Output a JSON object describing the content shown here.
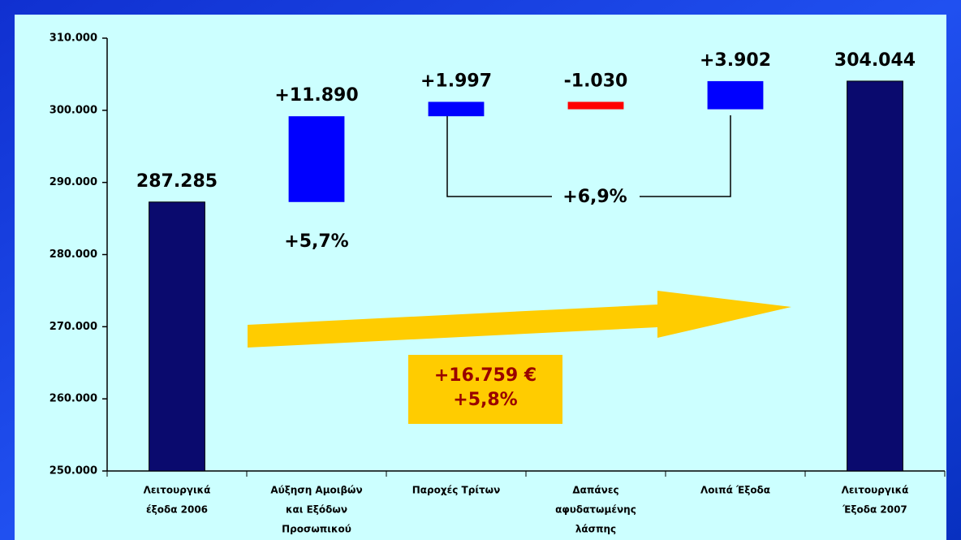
{
  "chart_data": {
    "type": "waterfall",
    "categories": [
      [
        "Λειτουργικά",
        "έξοδα 2006"
      ],
      [
        "Αύξηση Αμοιβών",
        "και Εξόδων",
        "Προσωπικού"
      ],
      [
        "Παροχές  Τρίτων"
      ],
      [
        "Δαπάνες",
        "αφυδατωμένης",
        "λάσπης"
      ],
      [
        "Λοιπά Έξοδα"
      ],
      [
        "Λειτουργικά",
        "Έξοδα 2007"
      ]
    ],
    "values": [
      287285,
      11890,
      1997,
      -1030,
      3902,
      304044
    ],
    "value_labels": [
      "287.285",
      "+11.890",
      "+1.997",
      "-1.030",
      "+3.902",
      "304.044"
    ],
    "measure": [
      "absolute",
      "relative",
      "relative",
      "relative",
      "relative",
      "absolute"
    ],
    "colors": [
      "#0a0a6e",
      "#0000ff",
      "#0000ff",
      "#ff0000",
      "#0000ff",
      "#0a0a6e"
    ],
    "ylim": [
      250000,
      310000
    ],
    "yticks": [
      {
        "value": 250000,
        "label": "250.000"
      },
      {
        "value": 260000,
        "label": "260.000"
      },
      {
        "value": 270000,
        "label": "270.000"
      },
      {
        "value": 280000,
        "label": "280.000"
      },
      {
        "value": 290000,
        "label": "290.000"
      },
      {
        "value": 300000,
        "label": "300.000"
      },
      {
        "value": 310000,
        "label": "310.000"
      }
    ],
    "annotations": [
      "+5,7%",
      "+6,9%",
      "+16.759 €",
      "+5,8%"
    ]
  }
}
